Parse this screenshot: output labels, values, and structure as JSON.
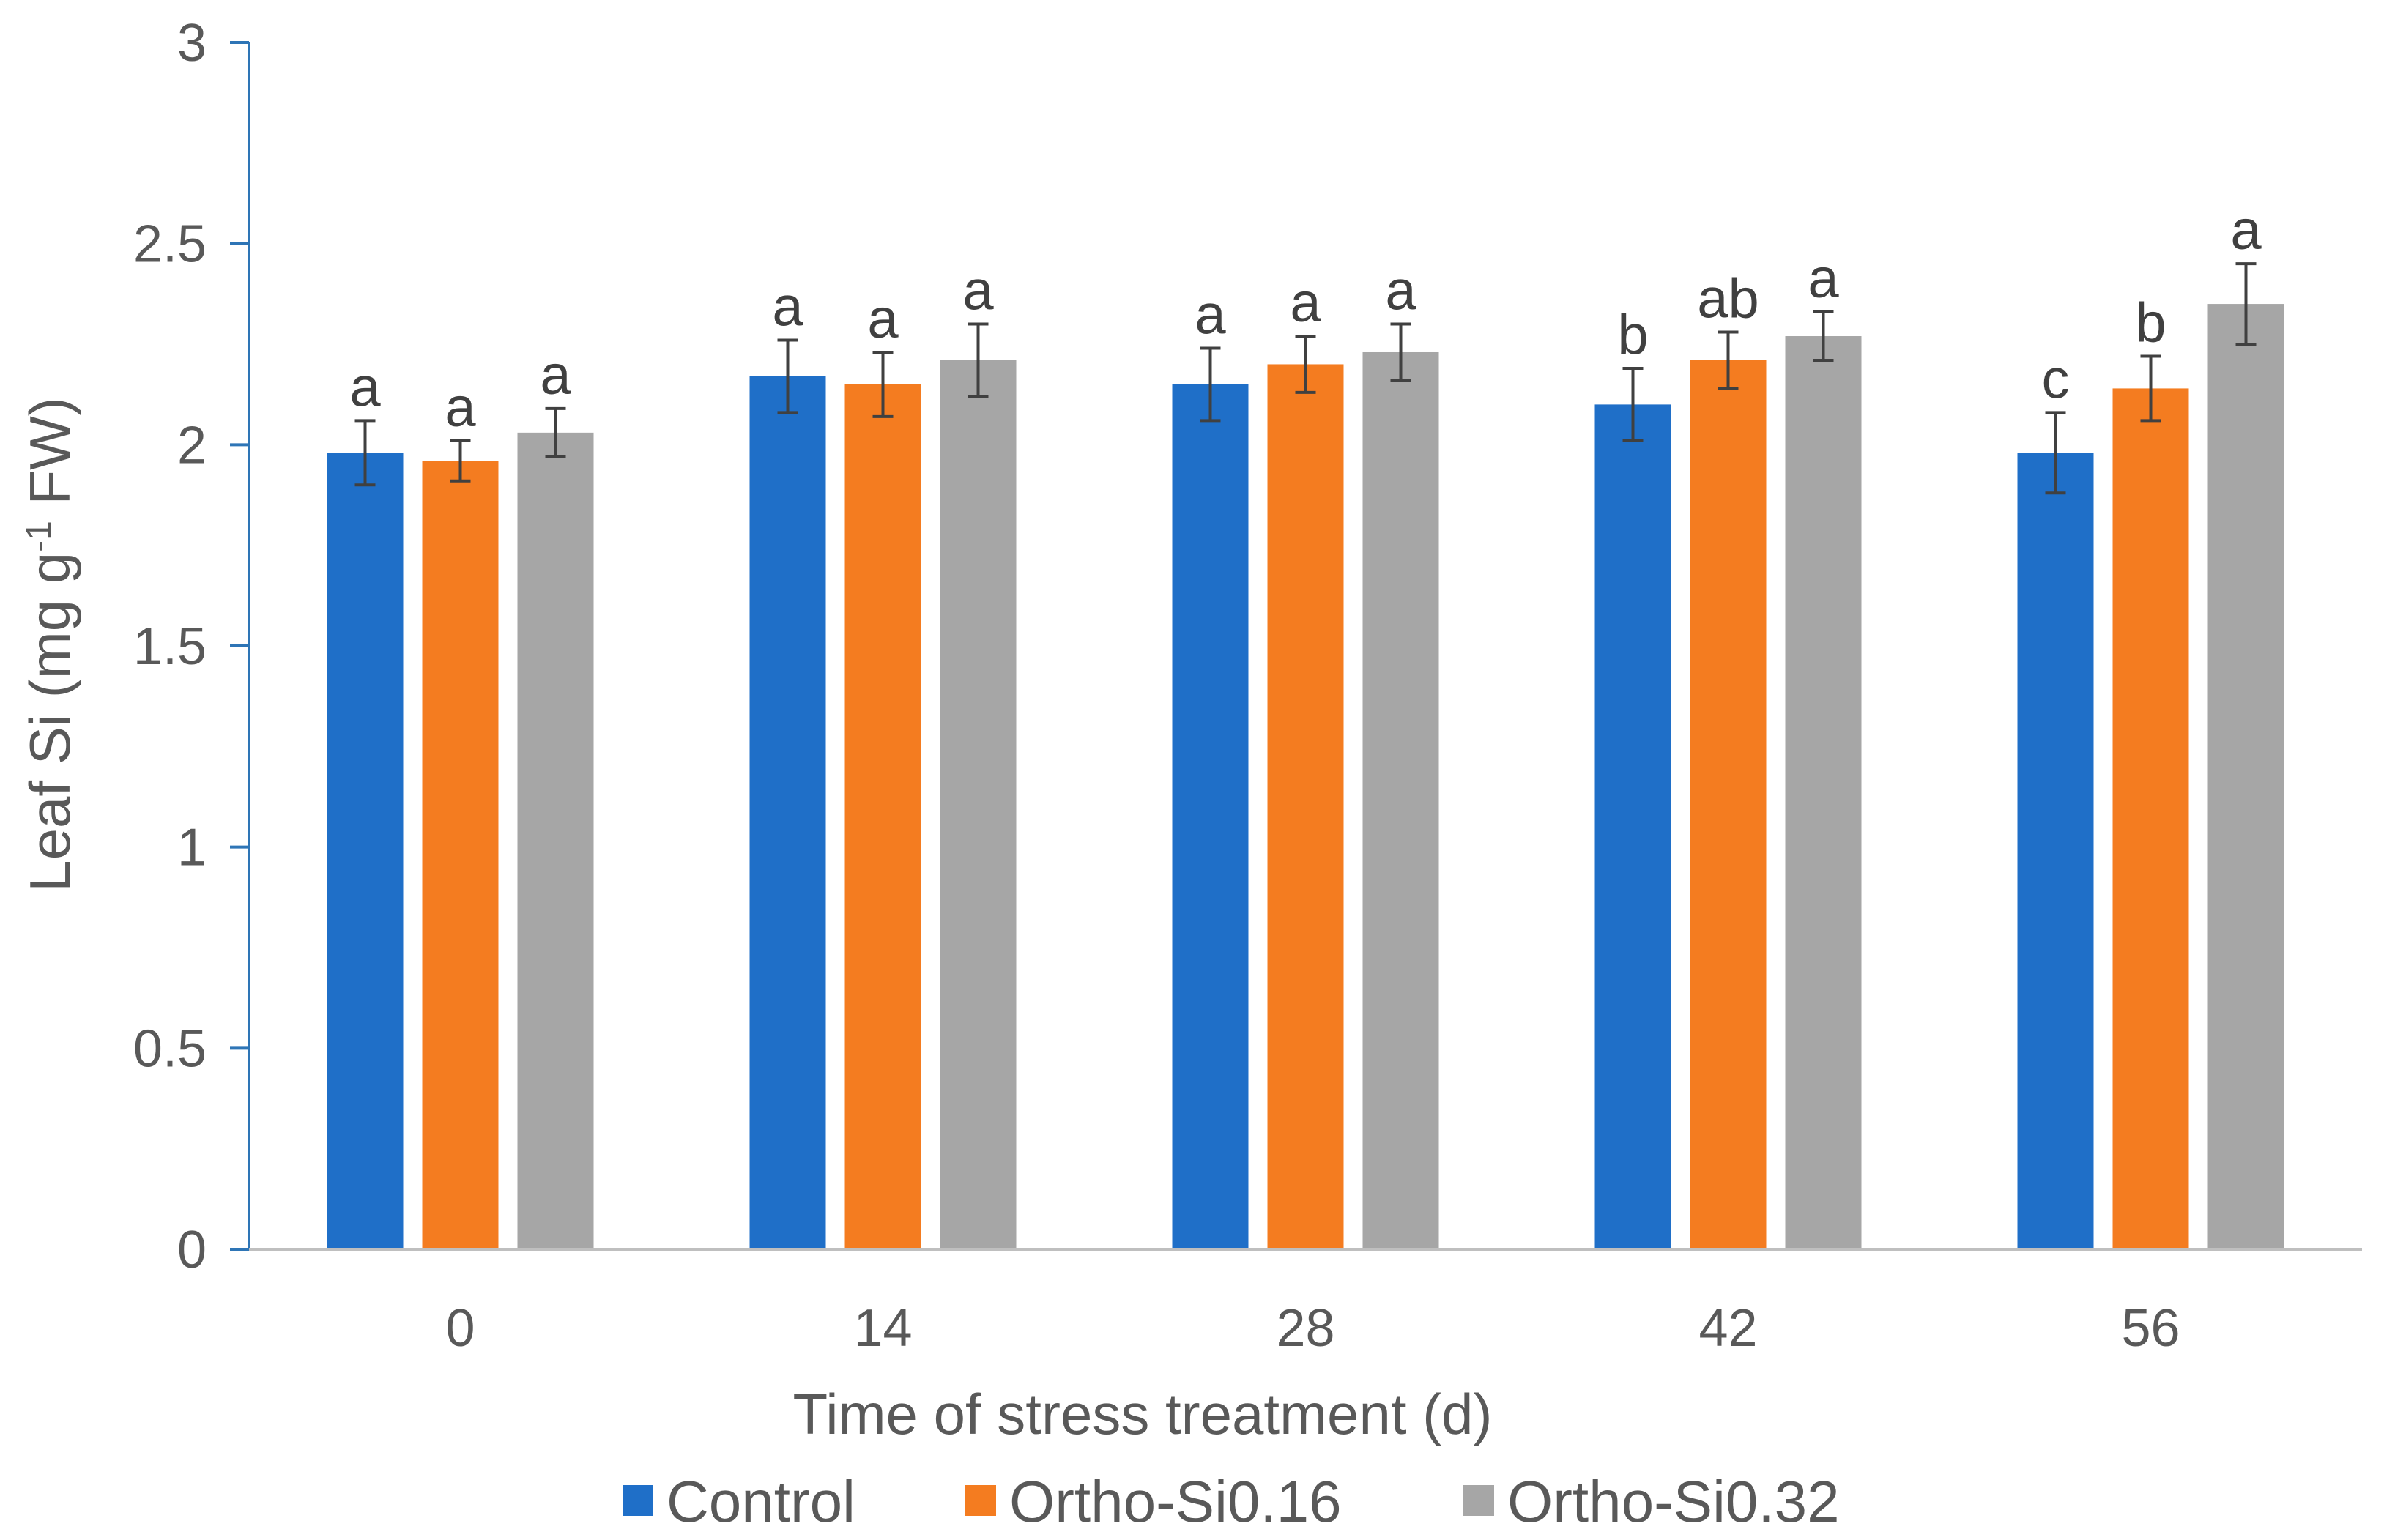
{
  "chart_data": {
    "type": "bar",
    "title": "",
    "xlabel": "Time of stress treatment (d)",
    "ylabel_parts": [
      "Leaf Si (mg g",
      "-1",
      " FW)"
    ],
    "categories": [
      "0",
      "14",
      "28",
      "42",
      "56"
    ],
    "ylim": [
      0,
      3
    ],
    "yticks": [
      "0",
      "0.5",
      "1",
      "1.5",
      "2",
      "2.5",
      "3"
    ],
    "legend_position": "bottom",
    "series": [
      {
        "name": "Control",
        "color": "#1f6fc8",
        "values": [
          1.98,
          2.17,
          2.15,
          2.1,
          1.98
        ],
        "errors": [
          0.08,
          0.09,
          0.09,
          0.09,
          0.1
        ],
        "letters": [
          "a",
          "a",
          "a",
          "b",
          "c"
        ]
      },
      {
        "name": "Ortho-Si0.16",
        "color": "#f47c20",
        "values": [
          1.96,
          2.15,
          2.2,
          2.21,
          2.14
        ],
        "errors": [
          0.05,
          0.08,
          0.07,
          0.07,
          0.08
        ],
        "letters": [
          "a",
          "a",
          "a",
          "ab",
          "b"
        ]
      },
      {
        "name": "Ortho-Si0.32",
        "color": "#a6a6a6",
        "values": [
          2.03,
          2.21,
          2.23,
          2.27,
          2.35
        ],
        "errors": [
          0.06,
          0.09,
          0.07,
          0.06,
          0.1
        ],
        "letters": [
          "a",
          "a",
          "a",
          "a",
          "a"
        ]
      }
    ]
  }
}
